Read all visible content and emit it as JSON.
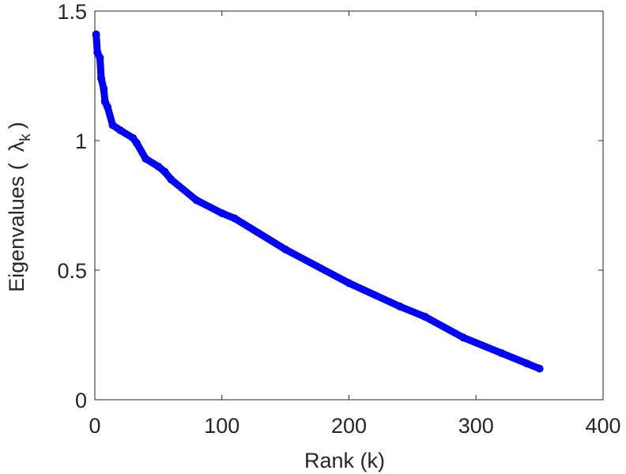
{
  "chart_data": {
    "type": "line",
    "title": "",
    "xlabel": "Rank (k)",
    "ylabel_prefix": "Eigenvalues (",
    "ylabel_symbol": "λ",
    "ylabel_subscript": "k",
    "ylabel_suffix": ")",
    "xlim": [
      0,
      400
    ],
    "ylim": [
      0,
      1.5
    ],
    "xticks": [
      0,
      100,
      200,
      300,
      400
    ],
    "xtick_labels": [
      "0",
      "100",
      "200",
      "300",
      "400"
    ],
    "yticks": [
      0,
      0.5,
      1,
      1.5
    ],
    "ytick_labels": [
      "0",
      "0.5",
      "1",
      "1.5"
    ],
    "grid": false,
    "series": [
      {
        "name": "Eigenvalues",
        "color": "#0000ff",
        "marker": "circle",
        "x": [
          1,
          2,
          4,
          5,
          7,
          8,
          10,
          14,
          20,
          30,
          33,
          40,
          50,
          55,
          60,
          80,
          100,
          110,
          150,
          200,
          240,
          260,
          290,
          320,
          340,
          350
        ],
        "y": [
          1.41,
          1.34,
          1.32,
          1.24,
          1.2,
          1.15,
          1.13,
          1.06,
          1.04,
          1.01,
          0.99,
          0.93,
          0.9,
          0.88,
          0.85,
          0.77,
          0.72,
          0.7,
          0.58,
          0.45,
          0.36,
          0.32,
          0.24,
          0.18,
          0.14,
          0.12
        ]
      }
    ]
  }
}
